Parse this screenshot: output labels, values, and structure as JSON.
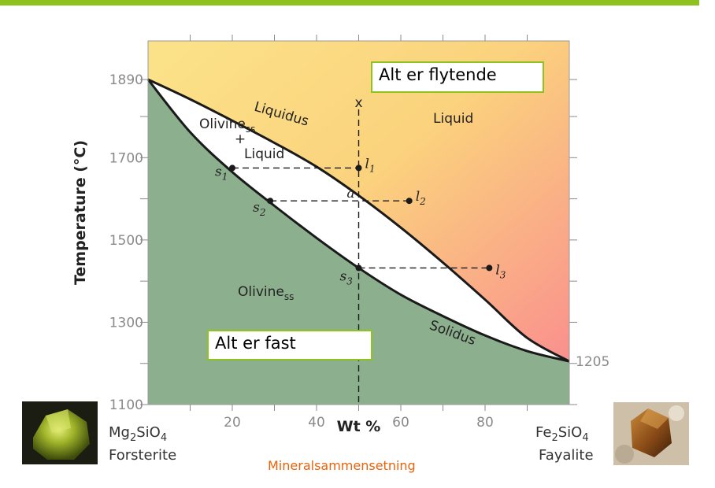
{
  "chart_data": {
    "type": "phase-diagram",
    "xlabel": "Wt %",
    "ylabel": "Temperature (°C)",
    "xlim": [
      0,
      100
    ],
    "ylim": [
      1100,
      1900
    ],
    "x_ticks": [
      "20",
      "40",
      "60",
      "80"
    ],
    "y_ticks": [
      "1100",
      "1300",
      "1500",
      "1700",
      "1890"
    ],
    "series": [
      {
        "name": "Liquidus",
        "x": [
          0,
          10,
          20,
          30,
          40,
          50,
          60,
          70,
          80,
          90,
          100
        ],
        "y": [
          1890,
          1842,
          1790,
          1736,
          1678,
          1608,
          1530,
          1445,
          1355,
          1262,
          1205
        ]
      },
      {
        "name": "Solidus",
        "x": [
          0,
          10,
          20,
          30,
          40,
          50,
          60,
          70,
          80,
          90,
          100
        ],
        "y": [
          1890,
          1762,
          1665,
          1583,
          1505,
          1432,
          1367,
          1315,
          1268,
          1230,
          1205
        ]
      }
    ],
    "points": [
      {
        "label": "s1",
        "x": 20,
        "y": 1675
      },
      {
        "label": "l1",
        "x": 50,
        "y": 1675
      },
      {
        "label": "s2",
        "x": 29,
        "y": 1595
      },
      {
        "label": "l2",
        "x": 62,
        "y": 1595
      },
      {
        "label": "s3",
        "x": 50,
        "y": 1432
      },
      {
        "label": "l3",
        "x": 81,
        "y": 1432
      }
    ],
    "markers": {
      "x_symbol": "x",
      "a_symbol": "a"
    },
    "regions": {
      "liquid": "Liquid",
      "two_phase_top": "Olivine",
      "two_phase_sub": "ss",
      "two_phase_plus": "+",
      "two_phase_bottom": "Liquid",
      "solid": "Olivine",
      "solid_sub": "ss"
    },
    "curve_labels": {
      "liquidus": "Liquidus",
      "solidus": "Solidus"
    },
    "endpoint_label": "1205",
    "left_endmember": {
      "formula_a": "Mg",
      "sub_a": "2",
      "formula_b": "SiO",
      "sub_b": "4",
      "name": "Forsterite"
    },
    "right_endmember": {
      "formula_a": "Fe",
      "sub_a": "2",
      "formula_b": "SiO",
      "sub_b": "4",
      "name": "Fayalite"
    },
    "colors": {
      "liquid_top": "#fbe585",
      "liquid_right": "#f9848a",
      "solid": "#8caf8e",
      "accent": "#8dc21f"
    }
  },
  "callouts": {
    "top": "Alt er flytende",
    "bottom": "Alt er fast"
  },
  "xlabel_note": "Mineralsammensetning",
  "photos": {
    "left": "peridot-crystal-photo",
    "right": "fayalite-crystal-photo"
  }
}
